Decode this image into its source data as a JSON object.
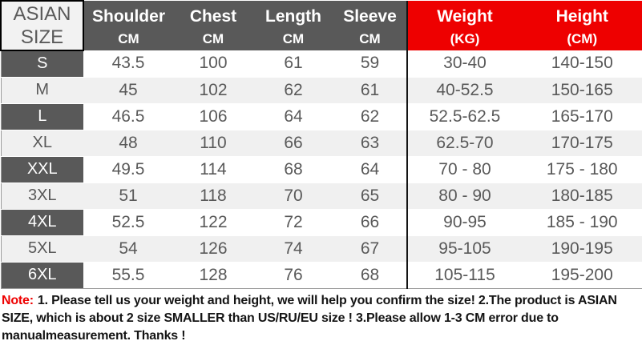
{
  "chart_data": {
    "type": "table",
    "title": "Asian size chart for garment (shoulder, chest, length, sleeve in CM; weight in KG; height in CM)",
    "corner_header": [
      "ASIAN",
      "SIZE"
    ],
    "columns": [
      {
        "label": "Shoulder",
        "unit": "CM",
        "style": "dark"
      },
      {
        "label": "Chest",
        "unit": "CM",
        "style": "dark"
      },
      {
        "label": "Length",
        "unit": "CM",
        "style": "dark"
      },
      {
        "label": "Sleeve",
        "unit": "CM",
        "style": "dark"
      },
      {
        "label": "Weight",
        "unit": "(KG)",
        "style": "red"
      },
      {
        "label": "Height",
        "unit": "(CM)",
        "style": "red"
      }
    ],
    "rows": [
      {
        "size": "S",
        "values": [
          "43.5",
          "100",
          "61",
          "59",
          "30-40",
          "140-150"
        ]
      },
      {
        "size": "M",
        "values": [
          "45",
          "102",
          "62",
          "61",
          "40-52.5",
          "150-165"
        ]
      },
      {
        "size": "L",
        "values": [
          "46.5",
          "106",
          "64",
          "62",
          "52.5-62.5",
          "165-170"
        ]
      },
      {
        "size": "XL",
        "values": [
          "48",
          "110",
          "66",
          "63",
          "62.5-70",
          "170-175"
        ]
      },
      {
        "size": "XXL",
        "values": [
          "49.5",
          "114",
          "68",
          "64",
          "70 - 80",
          "175 - 180"
        ]
      },
      {
        "size": "3XL",
        "values": [
          "51",
          "118",
          "70",
          "65",
          "80 - 90",
          "180-185"
        ]
      },
      {
        "size": "4XL",
        "values": [
          "52.5",
          "122",
          "72",
          "66",
          "90-95",
          "185 - 190"
        ]
      },
      {
        "size": "5XL",
        "values": [
          "54",
          "126",
          "74",
          "67",
          "95-105",
          "190-195"
        ]
      },
      {
        "size": "6XL",
        "values": [
          "55.5",
          "128",
          "76",
          "68",
          "105-115",
          "195-200"
        ]
      }
    ]
  },
  "note": {
    "label": "Note:",
    "text": "1. Please tell us your weight and height, we will help you confirm the size!  2.The product is ASIAN SIZE, which is about 2 size SMALLER than US/RU/EU size ! 3.Please allow 1-3 CM error due to manualmeasurement.  Thanks !"
  },
  "colors": {
    "header_dark": "#595959",
    "header_red": "#ee0000",
    "corner_bg": "#f2f2f2",
    "row_light": "#f0f0f0",
    "text_gray": "#595959",
    "note_red": "#ee0000",
    "note_text": "#141414",
    "border_black": "#000000"
  }
}
